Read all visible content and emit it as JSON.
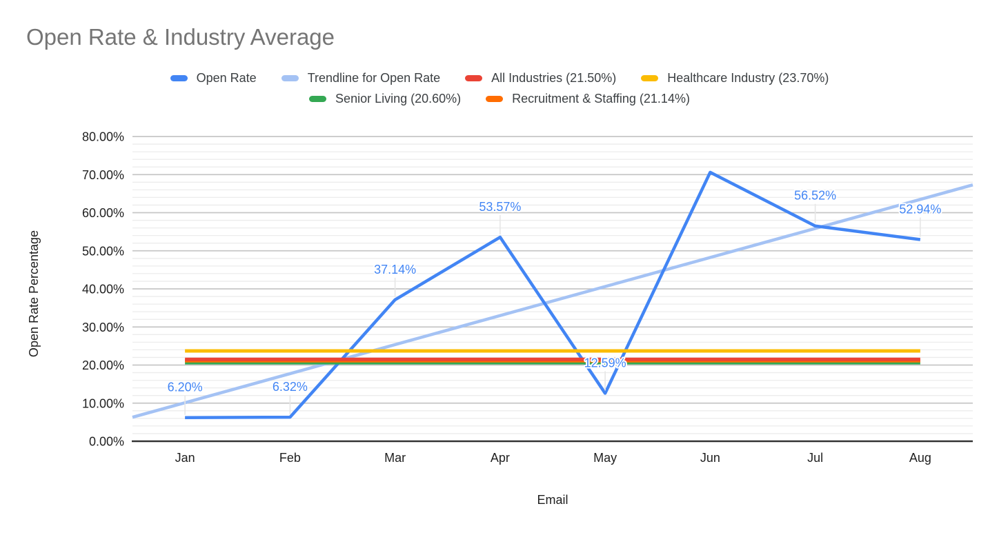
{
  "background_color": "#ffffff",
  "title_color": "#757575",
  "chart_data": {
    "type": "line",
    "title": "Open Rate & Industry Average",
    "xlabel": "Email",
    "ylabel": "Open Rate Percentage",
    "categories": [
      "Jan",
      "Feb",
      "Mar",
      "Apr",
      "May",
      "Jun",
      "Jul",
      "Aug"
    ],
    "series": [
      {
        "name": "Open Rate",
        "type": "line",
        "color": "#4285F4",
        "values": [
          6.2,
          6.32,
          37.14,
          53.57,
          12.59,
          70.6,
          56.52,
          52.94
        ],
        "point_labels": [
          "6.20%",
          "6.32%",
          "37.14%",
          "53.57%",
          "12.59%",
          null,
          "56.52%",
          "52.94%"
        ]
      },
      {
        "name": "Trendline for Open Rate",
        "type": "trendline",
        "color": "#A4C2F4",
        "edge_values": [
          6.3,
          67.3
        ]
      },
      {
        "name": "All Industries (21.50%)",
        "type": "constant",
        "color": "#EA4335",
        "value": 21.5
      },
      {
        "name": "Healthcare Industry (23.70%)",
        "type": "constant",
        "color": "#FBBC04",
        "value": 23.7
      },
      {
        "name": "Senior Living (20.60%)",
        "type": "constant",
        "color": "#34A853",
        "value": 20.6
      },
      {
        "name": "Recruitment & Staffing (21.14%)",
        "type": "constant",
        "color": "#FF6D01",
        "value": 21.14
      }
    ],
    "ylim": [
      0,
      80
    ],
    "y_major_step": 10,
    "y_minor_step": 2,
    "y_tick_labels": [
      "0.00%",
      "10.00%",
      "20.00%",
      "30.00%",
      "40.00%",
      "50.00%",
      "60.00%",
      "70.00%",
      "80.00%"
    ],
    "grid": true,
    "legend_position": "top"
  },
  "legend": {
    "rows": [
      [
        {
          "label": "Open Rate",
          "color": "#4285F4"
        },
        {
          "label": "Trendline for Open Rate",
          "color": "#A4C2F4"
        },
        {
          "label": "All Industries (21.50%)",
          "color": "#EA4335"
        },
        {
          "label": "Healthcare Industry (23.70%)",
          "color": "#FBBC04"
        }
      ],
      [
        {
          "label": "Senior Living (20.60%)",
          "color": "#34A853"
        },
        {
          "label": "Recruitment & Staffing (21.14%)",
          "color": "#FF6D01"
        }
      ]
    ]
  }
}
